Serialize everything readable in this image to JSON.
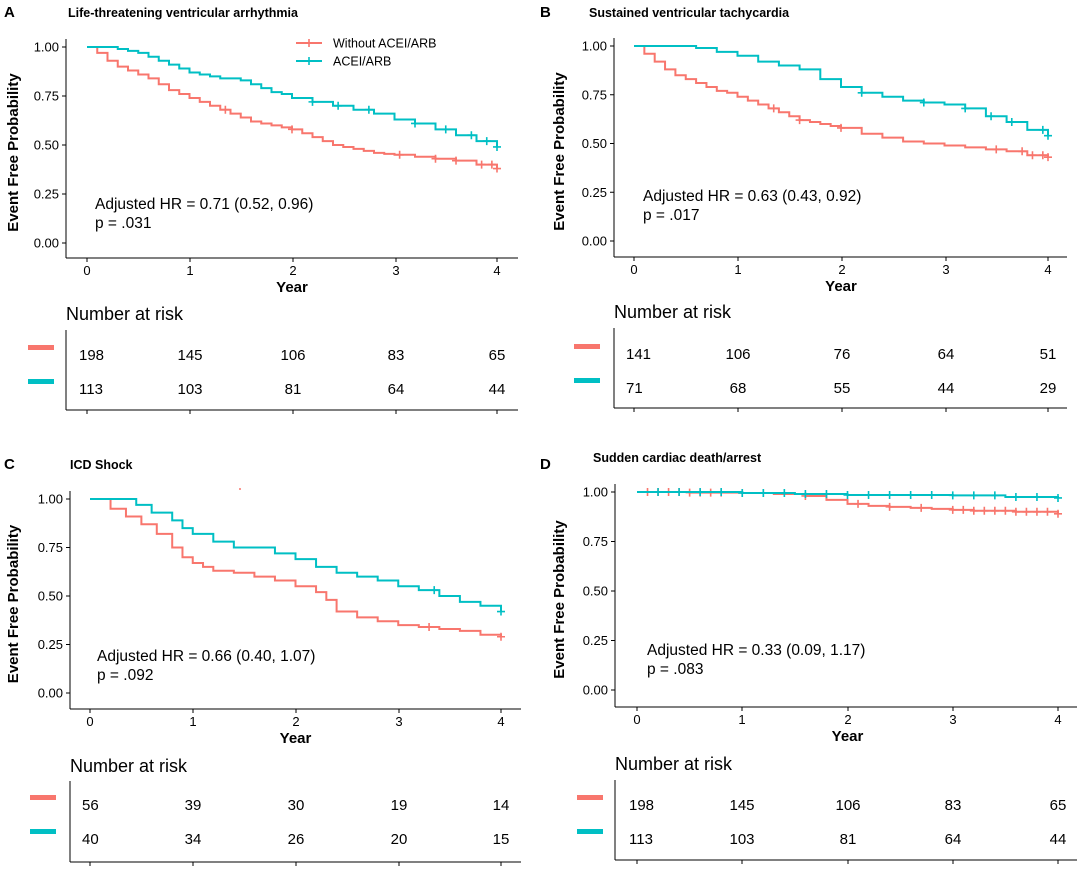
{
  "legend": {
    "labels": [
      "Without ACEI/ARB",
      "ACEI/ARB"
    ],
    "colors": [
      "#F8766D",
      "#00BFC4"
    ]
  },
  "chart_data": [
    {
      "type": "line",
      "panel": "A",
      "title": "Life-threatening ventricular arrhythmia",
      "xlabel": "Year",
      "ylabel": "Event Free Probability",
      "xlim": [
        0,
        4
      ],
      "ylim": [
        0,
        1
      ],
      "xticks": [
        "0",
        "1",
        "2",
        "3",
        "4"
      ],
      "yticks": [
        "0.00",
        "0.25",
        "0.50",
        "0.75",
        "1.00"
      ],
      "annotation": [
        "Adjusted HR = 0.71 (0.52, 0.96)",
        "p = .031"
      ],
      "show_legend": true,
      "series": [
        {
          "name": "Without ACEI/ARB",
          "color": "#F8766D",
          "x": [
            0,
            0.1,
            0.2,
            0.3,
            0.4,
            0.5,
            0.6,
            0.7,
            0.8,
            0.9,
            1.0,
            1.1,
            1.2,
            1.3,
            1.4,
            1.5,
            1.6,
            1.7,
            1.8,
            1.9,
            2.0,
            2.1,
            2.2,
            2.3,
            2.4,
            2.5,
            2.6,
            2.7,
            2.8,
            2.9,
            3.0,
            3.2,
            3.4,
            3.6,
            3.8,
            4.0
          ],
          "y": [
            1.0,
            0.97,
            0.93,
            0.9,
            0.88,
            0.86,
            0.84,
            0.81,
            0.78,
            0.76,
            0.74,
            0.72,
            0.7,
            0.68,
            0.66,
            0.64,
            0.62,
            0.61,
            0.6,
            0.59,
            0.58,
            0.56,
            0.54,
            0.52,
            0.5,
            0.49,
            0.48,
            0.47,
            0.46,
            0.455,
            0.45,
            0.44,
            0.43,
            0.42,
            0.4,
            0.38
          ],
          "censor_x": [
            1.35,
            2.0,
            3.05,
            3.4,
            3.6,
            3.85,
            3.95,
            4.0
          ]
        },
        {
          "name": "ACEI/ARB",
          "color": "#00BFC4",
          "x": [
            0,
            0.3,
            0.4,
            0.5,
            0.6,
            0.7,
            0.8,
            0.9,
            1.0,
            1.1,
            1.2,
            1.3,
            1.4,
            1.5,
            1.6,
            1.7,
            1.8,
            1.9,
            2.0,
            2.2,
            2.4,
            2.6,
            2.8,
            3.0,
            3.2,
            3.4,
            3.6,
            3.8,
            4.0
          ],
          "y": [
            1.0,
            0.99,
            0.98,
            0.97,
            0.95,
            0.93,
            0.91,
            0.89,
            0.87,
            0.86,
            0.85,
            0.84,
            0.84,
            0.83,
            0.81,
            0.79,
            0.77,
            0.76,
            0.74,
            0.72,
            0.7,
            0.68,
            0.66,
            0.63,
            0.61,
            0.58,
            0.55,
            0.52,
            0.49
          ],
          "censor_x": [
            2.2,
            2.45,
            2.75,
            3.2,
            3.5,
            3.75,
            3.9,
            4.0
          ]
        }
      ],
      "risk_table": {
        "title": "Number at risk",
        "rows": [
          [
            "198",
            "145",
            "106",
            "83",
            "65"
          ],
          [
            "113",
            "103",
            "81",
            "64",
            "44"
          ]
        ]
      }
    },
    {
      "type": "line",
      "panel": "B",
      "title": "Sustained ventricular tachycardia",
      "xlabel": "Year",
      "ylabel": "Event Free Probability",
      "xlim": [
        0,
        4
      ],
      "ylim": [
        0,
        1
      ],
      "xticks": [
        "0",
        "1",
        "2",
        "3",
        "4"
      ],
      "yticks": [
        "0.00",
        "0.25",
        "0.50",
        "0.75",
        "1.00"
      ],
      "annotation": [
        "Adjusted HR = 0.63 (0.43, 0.92)",
        "p = .017"
      ],
      "show_legend": false,
      "series": [
        {
          "name": "Without ACEI/ARB",
          "color": "#F8766D",
          "x": [
            0,
            0.1,
            0.2,
            0.3,
            0.4,
            0.5,
            0.6,
            0.7,
            0.8,
            0.9,
            1.0,
            1.1,
            1.2,
            1.3,
            1.4,
            1.5,
            1.6,
            1.7,
            1.8,
            1.9,
            2.0,
            2.2,
            2.4,
            2.6,
            2.8,
            3.0,
            3.2,
            3.4,
            3.6,
            3.8,
            4.0
          ],
          "y": [
            1.0,
            0.96,
            0.92,
            0.88,
            0.85,
            0.83,
            0.81,
            0.79,
            0.77,
            0.76,
            0.74,
            0.72,
            0.7,
            0.68,
            0.66,
            0.64,
            0.62,
            0.61,
            0.6,
            0.59,
            0.58,
            0.55,
            0.53,
            0.51,
            0.5,
            0.49,
            0.48,
            0.47,
            0.46,
            0.44,
            0.43
          ],
          "censor_x": [
            1.35,
            1.6,
            2.0,
            3.5,
            3.75,
            3.85,
            3.95,
            4.0
          ]
        },
        {
          "name": "ACEI/ARB",
          "color": "#00BFC4",
          "x": [
            0,
            0.6,
            0.8,
            1.0,
            1.2,
            1.4,
            1.6,
            1.8,
            2.0,
            2.2,
            2.4,
            2.6,
            2.8,
            3.0,
            3.2,
            3.4,
            3.6,
            3.8,
            4.0
          ],
          "y": [
            1.0,
            0.99,
            0.97,
            0.95,
            0.92,
            0.9,
            0.88,
            0.83,
            0.79,
            0.76,
            0.74,
            0.72,
            0.71,
            0.7,
            0.68,
            0.64,
            0.61,
            0.57,
            0.54
          ],
          "censor_x": [
            2.2,
            2.8,
            3.2,
            3.45,
            3.65,
            3.95,
            4.0
          ]
        }
      ],
      "risk_table": {
        "title": "Number at risk",
        "rows": [
          [
            "141",
            "106",
            "76",
            "64",
            "51"
          ],
          [
            "71",
            "68",
            "55",
            "44",
            "29"
          ]
        ]
      }
    },
    {
      "type": "line",
      "panel": "C",
      "title": "ICD Shock",
      "xlabel": "Year",
      "ylabel": "Event Free Probability",
      "xlim": [
        0,
        4
      ],
      "ylim": [
        0,
        1
      ],
      "xticks": [
        "0",
        "1",
        "2",
        "3",
        "4"
      ],
      "yticks": [
        "0.00",
        "0.25",
        "0.50",
        "0.75",
        "1.00"
      ],
      "annotation": [
        "Adjusted HR = 0.66 (0.40, 1.07)",
        "p = .092"
      ],
      "show_legend": false,
      "series": [
        {
          "name": "Without ACEI/ARB",
          "color": "#F8766D",
          "x": [
            0,
            0.2,
            0.35,
            0.5,
            0.65,
            0.8,
            0.9,
            1.0,
            1.1,
            1.2,
            1.4,
            1.6,
            1.8,
            2.0,
            2.2,
            2.3,
            2.4,
            2.6,
            2.8,
            3.0,
            3.2,
            3.4,
            3.6,
            3.8,
            4.0
          ],
          "y": [
            1.0,
            0.95,
            0.91,
            0.87,
            0.82,
            0.75,
            0.7,
            0.67,
            0.65,
            0.63,
            0.62,
            0.6,
            0.58,
            0.55,
            0.52,
            0.48,
            0.42,
            0.39,
            0.37,
            0.35,
            0.34,
            0.33,
            0.32,
            0.3,
            0.29
          ],
          "censor_x": [
            3.3,
            4.0
          ]
        },
        {
          "name": "ACEI/ARB",
          "color": "#00BFC4",
          "x": [
            0,
            0.45,
            0.6,
            0.8,
            0.9,
            1.0,
            1.2,
            1.4,
            1.6,
            1.8,
            2.0,
            2.2,
            2.4,
            2.6,
            2.8,
            3.0,
            3.2,
            3.4,
            3.6,
            3.8,
            4.0
          ],
          "y": [
            1.0,
            0.97,
            0.93,
            0.89,
            0.85,
            0.82,
            0.78,
            0.75,
            0.75,
            0.72,
            0.69,
            0.65,
            0.62,
            0.6,
            0.58,
            0.55,
            0.53,
            0.5,
            0.47,
            0.45,
            0.42
          ],
          "censor_x": [
            3.35,
            4.0
          ]
        }
      ],
      "risk_table": {
        "title": "Number at risk",
        "rows": [
          [
            "56",
            "39",
            "30",
            "19",
            "14"
          ],
          [
            "40",
            "34",
            "26",
            "20",
            "15"
          ]
        ]
      }
    },
    {
      "type": "line",
      "panel": "D",
      "title": "Sudden cardiac death/arrest",
      "xlabel": "Year",
      "ylabel": "Event Free Probability",
      "xlim": [
        0,
        4
      ],
      "ylim": [
        0,
        1
      ],
      "xticks": [
        "0",
        "1",
        "2",
        "3",
        "4"
      ],
      "yticks": [
        "0.00",
        "0.25",
        "0.50",
        "0.75",
        "1.00"
      ],
      "annotation": [
        "Adjusted HR = 0.33 (0.09, 1.17)",
        "p = .083"
      ],
      "show_legend": false,
      "series": [
        {
          "name": "Without ACEI/ARB",
          "color": "#F8766D",
          "x": [
            0,
            0.5,
            1.0,
            1.3,
            1.6,
            1.8,
            2.0,
            2.2,
            2.4,
            2.6,
            2.8,
            3.0,
            3.2,
            3.6,
            4.0
          ],
          "y": [
            1.0,
            0.997,
            0.995,
            0.99,
            0.98,
            0.96,
            0.94,
            0.93,
            0.925,
            0.92,
            0.915,
            0.91,
            0.905,
            0.9,
            0.89
          ],
          "censor_x": [
            0.1,
            0.2,
            0.3,
            0.4,
            0.5,
            0.6,
            0.7,
            0.8,
            1.0,
            1.2,
            1.6,
            2.1,
            2.4,
            2.7,
            3.0,
            3.1,
            3.2,
            3.3,
            3.4,
            3.5,
            3.6,
            3.7,
            3.8,
            3.9,
            4.0
          ]
        },
        {
          "name": "ACEI/ARB",
          "color": "#00BFC4",
          "x": [
            0,
            1.0,
            1.5,
            2.0,
            3.0,
            3.5,
            4.0
          ],
          "y": [
            1.0,
            0.995,
            0.99,
            0.985,
            0.983,
            0.975,
            0.97
          ],
          "censor_x": [
            0.2,
            0.4,
            0.6,
            0.8,
            1.0,
            1.2,
            1.4,
            1.6,
            1.8,
            2.0,
            2.2,
            2.4,
            2.6,
            2.8,
            3.0,
            3.2,
            3.4,
            3.6,
            3.8,
            4.0
          ]
        }
      ],
      "risk_table": {
        "title": "Number at risk",
        "rows": [
          [
            "198",
            "145",
            "106",
            "83",
            "65"
          ],
          [
            "113",
            "103",
            "81",
            "64",
            "44"
          ]
        ]
      }
    }
  ]
}
